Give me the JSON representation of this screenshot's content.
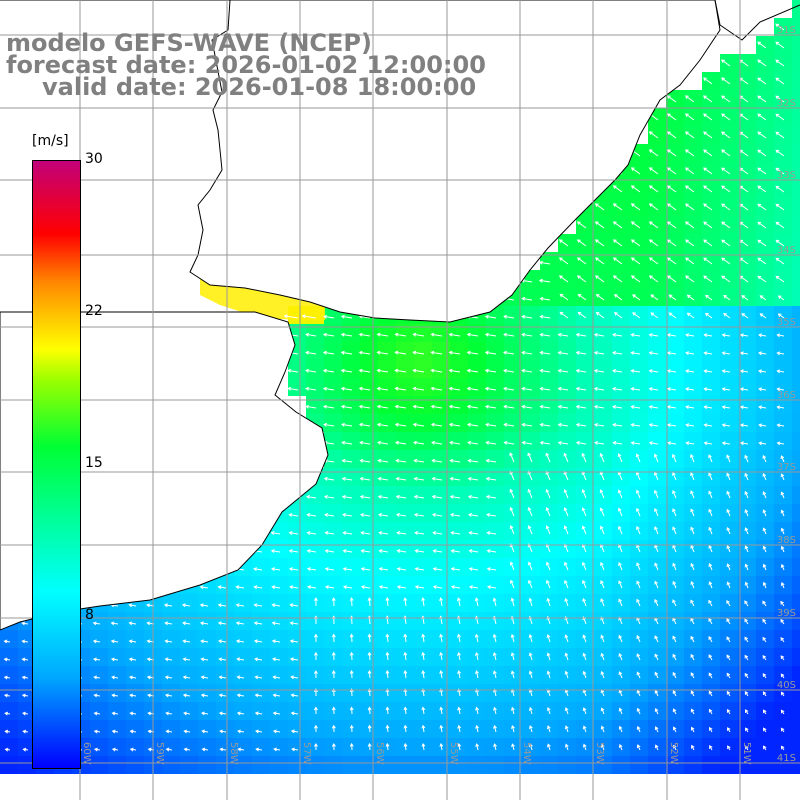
{
  "header": {
    "line1": "modelo GEFS-WAVE (NCEP)",
    "line2": "forecast date: 2026-01-02 12:00:00",
    "line3": "valid date: 2026-01-08 18:00:00"
  },
  "colorbar": {
    "unit": "[m/s]",
    "ticks": [
      "30",
      "22",
      "15",
      "8"
    ],
    "range": [
      0,
      30
    ],
    "colors": [
      "#0000ff",
      "#00a8ff",
      "#00ffff",
      "#00ff33",
      "#9cff00",
      "#ffff00",
      "#ff8800",
      "#ff0000",
      "#c2007a"
    ]
  },
  "map": {
    "lon_labels": [
      "60W",
      "59W",
      "58W",
      "57W",
      "56W",
      "55W",
      "54W",
      "53W",
      "52W",
      "51W"
    ],
    "lat_labels": [
      "31S",
      "32S",
      "33S",
      "34S",
      "35S",
      "36S",
      "37S",
      "38S",
      "39S",
      "40S",
      "41S"
    ],
    "land_color": "#ffffff",
    "grid_color": "#999999",
    "arrow_color": "#ffffff"
  }
}
